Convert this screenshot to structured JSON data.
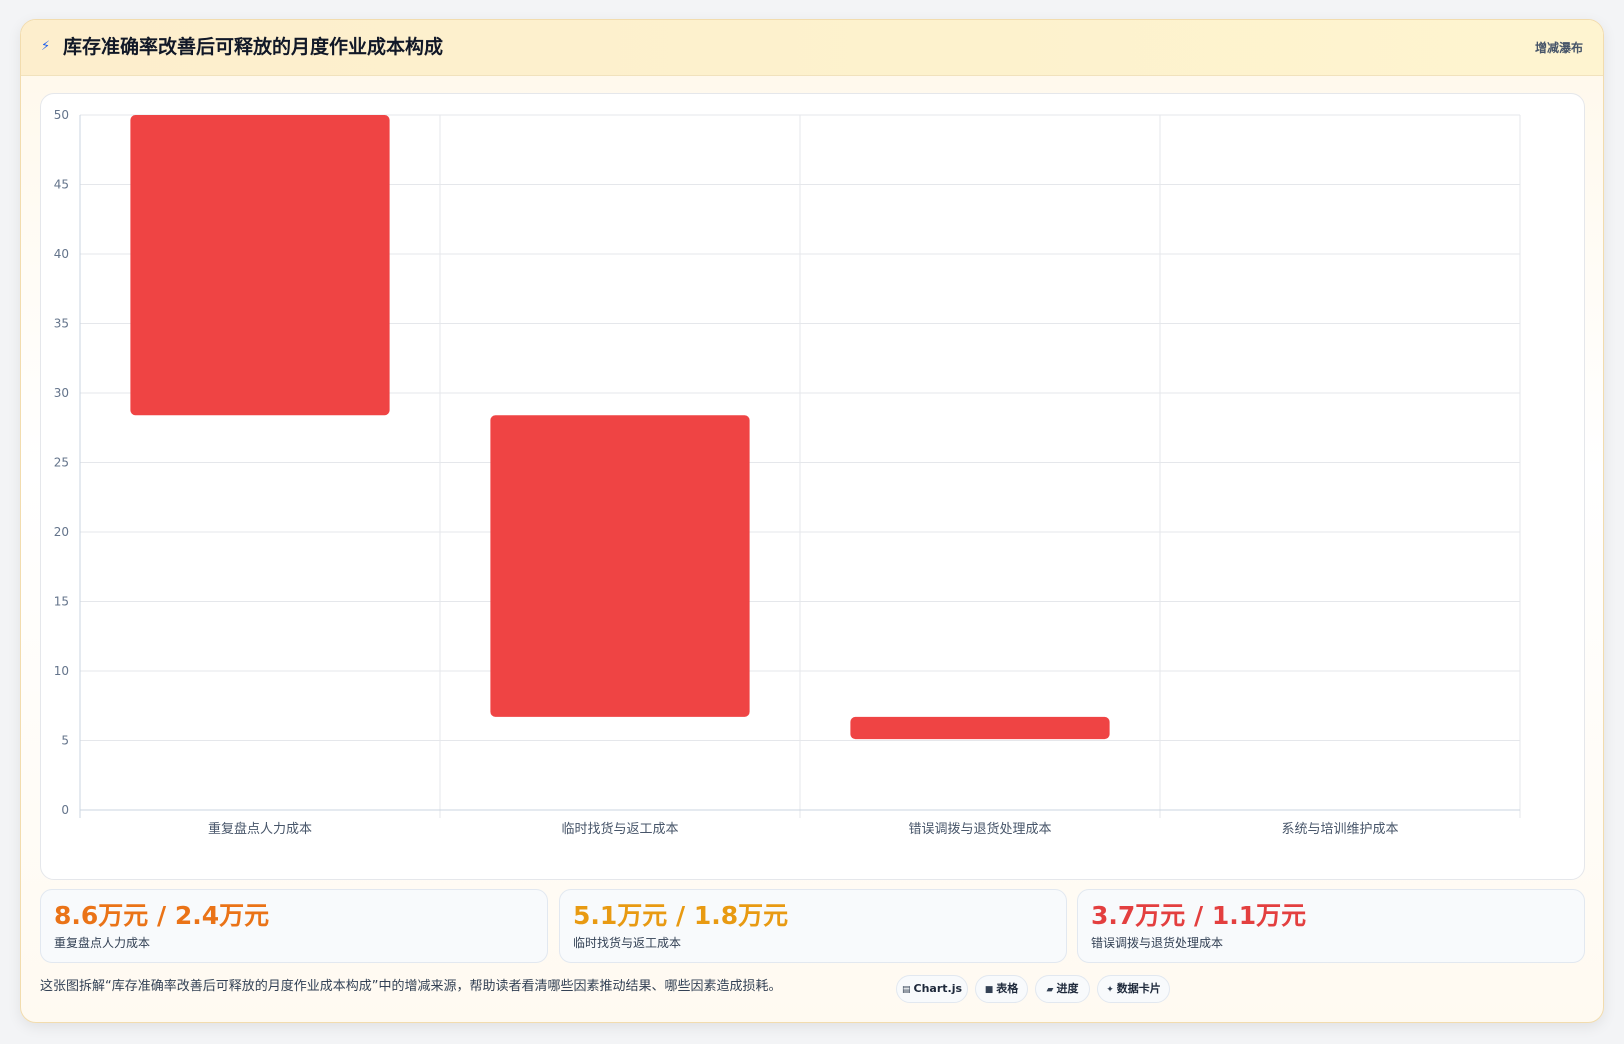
{
  "header": {
    "icon": "lightning-icon",
    "title": "库存准确率改善后可释放的月度作业成本构成",
    "tag": "增减瀑布"
  },
  "chart_data": {
    "type": "bar",
    "subtype": "waterfall",
    "title": "",
    "xlabel": "",
    "ylabel": "",
    "categories": [
      "重复盘点人力成本",
      "临时找货与返工成本",
      "错误调拨与退货处理成本",
      "系统与培训维护成本"
    ],
    "series": [
      {
        "ranges": [
          [
            28.4,
            50
          ],
          [
            6.7,
            28.4
          ],
          [
            5.1,
            6.7
          ],
          [
            null,
            null
          ]
        ],
        "color": "#ef4444"
      }
    ],
    "ylim": [
      0,
      50
    ],
    "yticks": [
      0,
      5,
      10,
      15,
      20,
      25,
      30,
      35,
      40,
      45,
      50
    ],
    "grid": true,
    "legend": "none"
  },
  "stats": [
    {
      "value": "8.6万元 / 2.4万元",
      "label": "重复盘点人力成本",
      "color": "#ea7317"
    },
    {
      "value": "5.1万元 / 1.8万元",
      "label": "临时找货与返工成本",
      "color": "#e89a12"
    },
    {
      "value": "3.7万元 / 1.1万元",
      "label": "错误调拨与退货处理成本",
      "color": "#e33f3f"
    }
  ],
  "caption": "这张图拆解“库存准确率改善后可释放的月度作业成本构成”中的增减来源，帮助读者看清哪些因素推动结果、哪些因素造成损耗。",
  "pills": [
    {
      "icon": "chart-icon",
      "glyph": "▤",
      "label": "Chart.js"
    },
    {
      "icon": "table-icon",
      "glyph": "■",
      "label": "表格"
    },
    {
      "icon": "progress-icon",
      "glyph": "▰",
      "label": "进度"
    },
    {
      "icon": "sparkle-icon",
      "glyph": "✦",
      "label": "数据卡片"
    }
  ]
}
